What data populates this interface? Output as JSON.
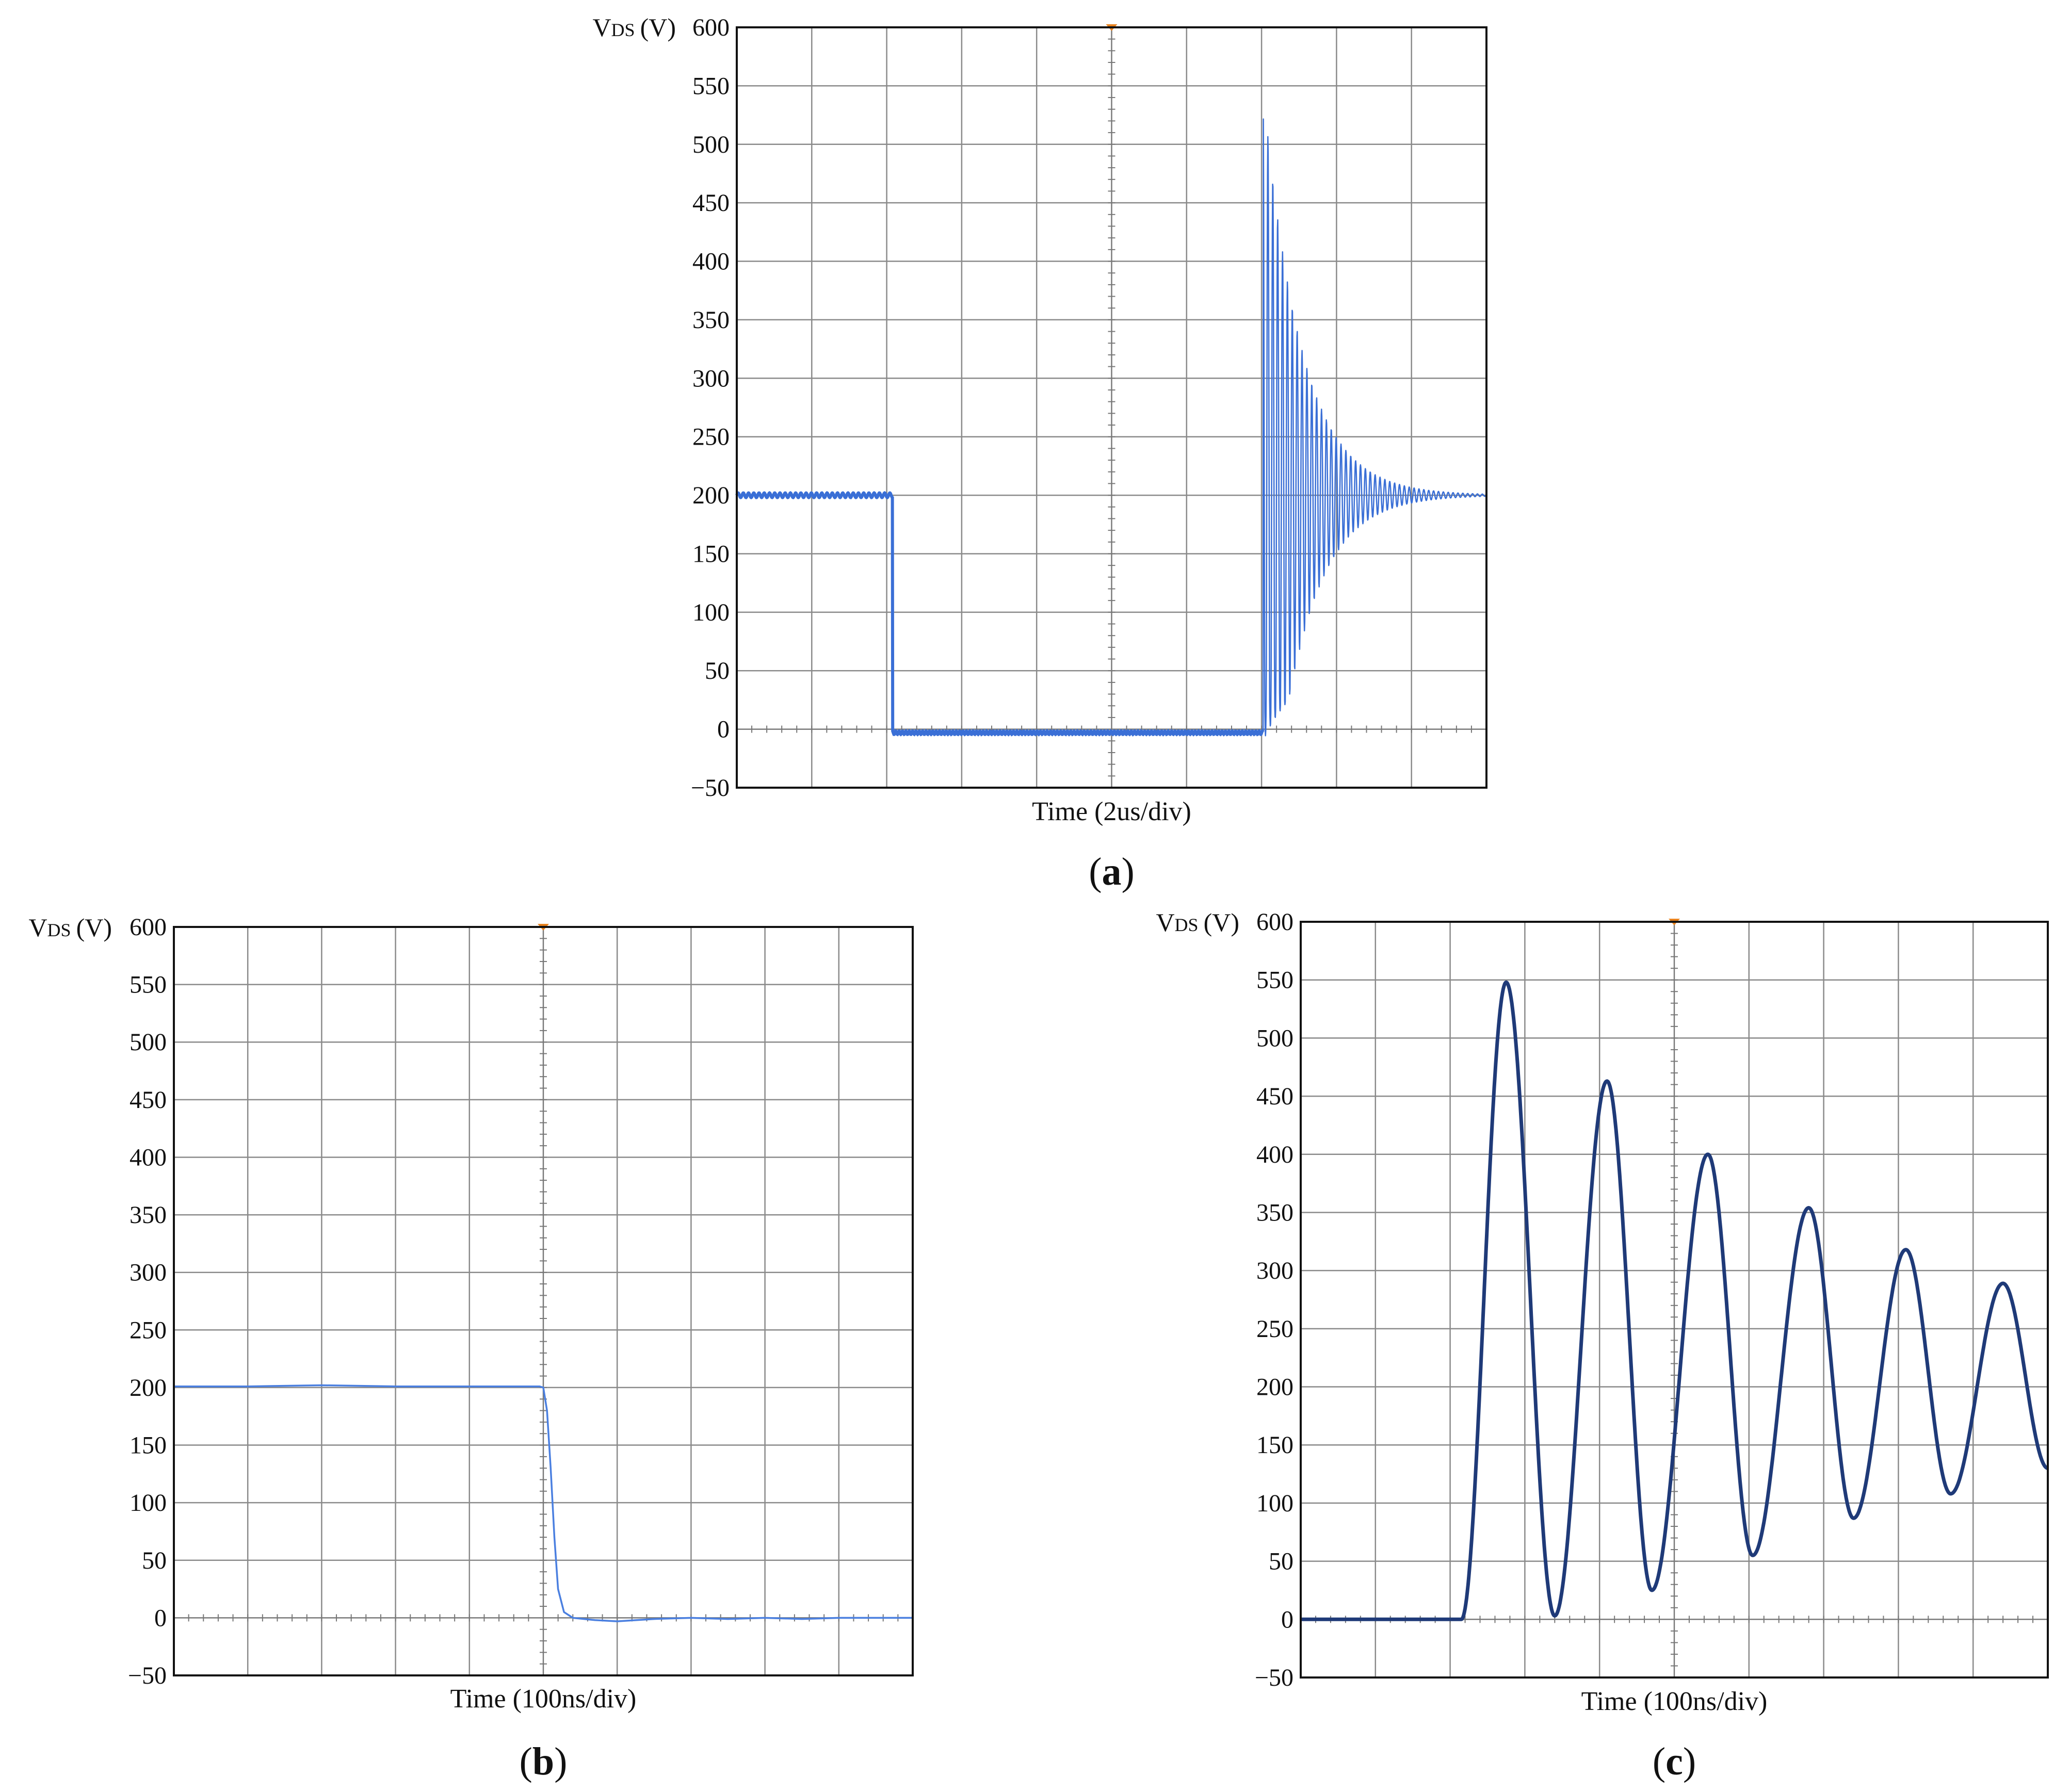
{
  "figure": {
    "panels": [
      {
        "id": "a",
        "caption_letter": "a",
        "y_label_main": "V",
        "y_label_sub": "DS",
        "y_label_unit": "(V)",
        "x_label": "Time (2us/div)"
      },
      {
        "id": "b",
        "caption_letter": "b",
        "y_label_main": "V",
        "y_label_sub": "DS",
        "y_label_unit": "(V)",
        "x_label": "Time (100ns/div)"
      },
      {
        "id": "c",
        "caption_letter": "c",
        "y_label_main": "V",
        "y_label_sub": "DS",
        "y_label_unit": "(V)",
        "x_label": "Time (100ns/div)"
      }
    ]
  },
  "chart_data": [
    {
      "id": "a",
      "type": "line",
      "xlabel": "Time (2us/div)",
      "ylabel": "VDS (V)",
      "ylim": [
        -50,
        600
      ],
      "yticks": [
        -50,
        0,
        50,
        100,
        150,
        200,
        250,
        300,
        350,
        400,
        450,
        500,
        550,
        600
      ],
      "x_divisions": 10,
      "xlim_div": [
        0,
        10
      ],
      "grid": true,
      "trigger_marker_div": 5,
      "trace_color": "#3a6fd6",
      "series": [
        {
          "waveform": "step_down_then_ringing",
          "high_level_v": 200,
          "low_level_v": -3,
          "fall_at_div": 2.08,
          "rise_at_div": 7.02,
          "first_peak_v": 550,
          "ring_period_div": 0.065,
          "ring_decay_div": 0.5,
          "settle_level_v": 200,
          "min_after_rise_v": 25
        }
      ]
    },
    {
      "id": "b",
      "type": "line",
      "xlabel": "Time (100ns/div)",
      "ylabel": "VDS (V)",
      "ylim": [
        -50,
        600
      ],
      "yticks": [
        -50,
        0,
        50,
        100,
        150,
        200,
        250,
        300,
        350,
        400,
        450,
        500,
        550,
        600
      ],
      "x_divisions": 10,
      "xlim_div": [
        0,
        10
      ],
      "grid": true,
      "trigger_marker_div": 5,
      "trace_color": "#4a7fe0",
      "series": [
        {
          "waveform": "falling_edge",
          "points": [
            [
              0,
              201
            ],
            [
              1,
              201
            ],
            [
              2,
              202
            ],
            [
              3,
              201
            ],
            [
              4,
              201
            ],
            [
              4.95,
              201
            ],
            [
              5.0,
              200
            ],
            [
              5.05,
              180
            ],
            [
              5.1,
              130
            ],
            [
              5.15,
              70
            ],
            [
              5.2,
              25
            ],
            [
              5.28,
              5
            ],
            [
              5.4,
              0
            ],
            [
              5.7,
              -2
            ],
            [
              6.0,
              -3
            ],
            [
              6.5,
              -1
            ],
            [
              7,
              0
            ],
            [
              7.5,
              -1
            ],
            [
              8,
              0
            ],
            [
              8.5,
              -1
            ],
            [
              9,
              0
            ],
            [
              9.5,
              0
            ],
            [
              10,
              0
            ]
          ]
        }
      ]
    },
    {
      "id": "c",
      "type": "line",
      "xlabel": "Time (100ns/div)",
      "ylabel": "VDS (V)",
      "ylim": [
        -50,
        600
      ],
      "yticks": [
        -50,
        0,
        50,
        100,
        150,
        200,
        250,
        300,
        350,
        400,
        450,
        500,
        550,
        600
      ],
      "x_divisions": 10,
      "xlim_div": [
        0,
        10
      ],
      "grid": true,
      "trigger_marker_div": 5,
      "trace_color": "#1f3a78",
      "series": [
        {
          "waveform": "damped_ringing",
          "baseline_v": 0,
          "rise_start_div": 2.15,
          "peaks": [
            [
              2.75,
              548
            ],
            [
              4.1,
              463
            ],
            [
              5.45,
              400
            ],
            [
              6.8,
              354
            ],
            [
              8.1,
              318
            ],
            [
              9.4,
              289
            ]
          ],
          "troughs": [
            [
              3.4,
              3
            ],
            [
              4.7,
              25
            ],
            [
              6.05,
              55
            ],
            [
              7.4,
              87
            ],
            [
              8.7,
              108
            ],
            [
              10,
              130
            ]
          ]
        }
      ]
    }
  ]
}
